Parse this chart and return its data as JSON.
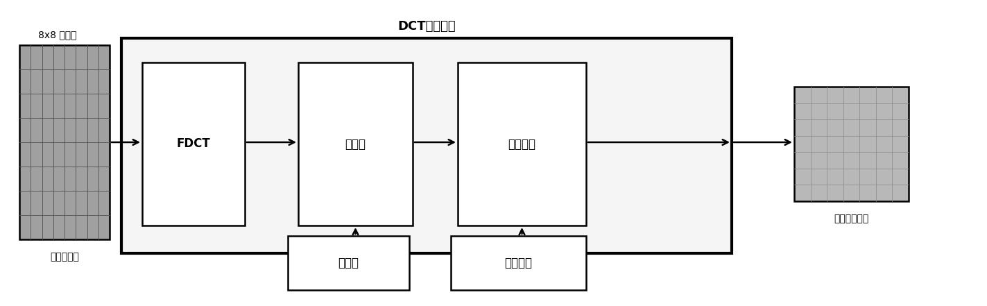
{
  "title": "DCT基编码器",
  "label_8x8": "8x8 图象块",
  "label_source": "源图像数据",
  "label_fdct": "FDCT",
  "label_quantizer": "量化器",
  "label_entropy": "熵编码器",
  "label_output": "压缩图像数据",
  "label_qtable": "量化表",
  "label_etable": "熵缩码表",
  "bg_color": "#ffffff",
  "box_edge": "#000000",
  "outer_fill": "#ffffff",
  "inner_fill": "#ffffff",
  "grid_fill": "#a0a0a0",
  "output_fill": "#b8b8b8",
  "text_color": "#000000",
  "arrow_color": "#000000",
  "figsize": [
    14.23,
    4.41
  ],
  "dpi": 100,
  "lw_outer": 3.0,
  "lw_inner": 1.8,
  "lw_arrow": 1.8
}
